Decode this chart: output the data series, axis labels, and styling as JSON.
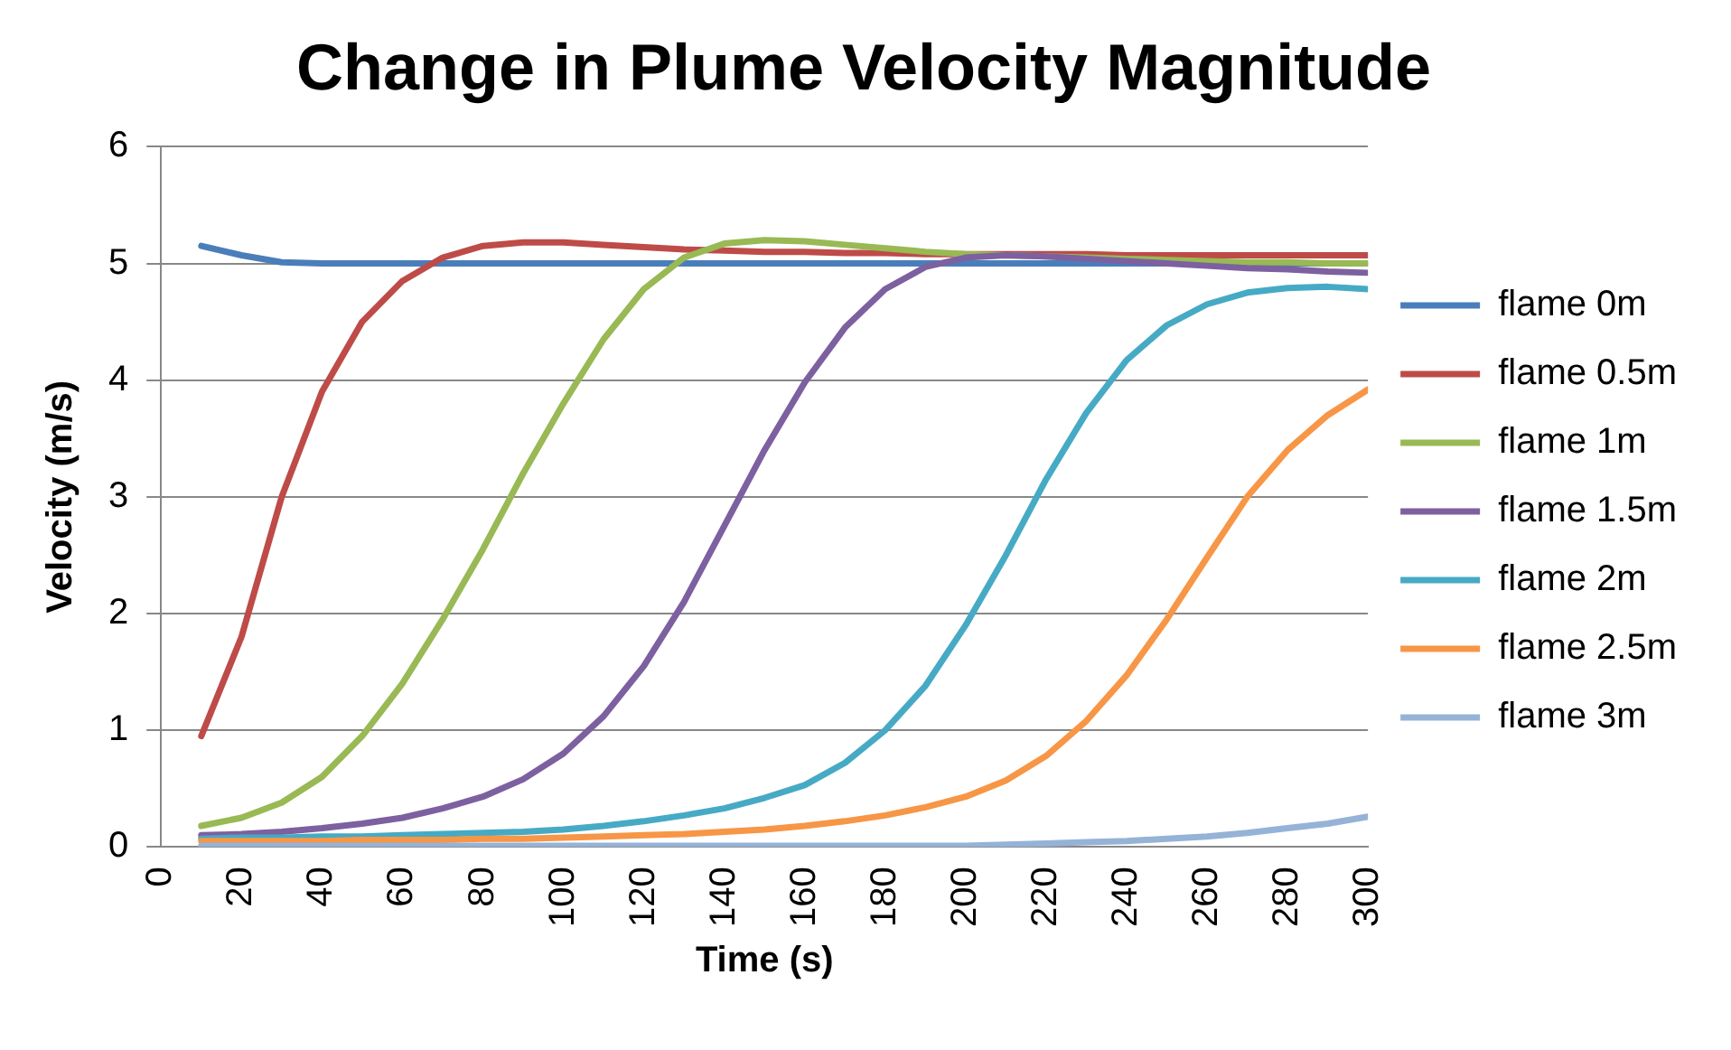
{
  "chart_data": {
    "type": "line",
    "title": "Change in Plume Velocity Magnitude",
    "xlabel": "Time (s)",
    "ylabel": "Velocity (m/s)",
    "x": [
      10,
      20,
      30,
      40,
      50,
      60,
      70,
      80,
      90,
      100,
      110,
      120,
      130,
      140,
      150,
      160,
      170,
      180,
      190,
      200,
      210,
      220,
      230,
      240,
      250,
      260,
      270,
      280,
      290,
      300
    ],
    "xlim": [
      0,
      300
    ],
    "xticks": [
      0,
      20,
      40,
      60,
      80,
      100,
      120,
      140,
      160,
      180,
      200,
      220,
      240,
      260,
      280,
      300
    ],
    "ylim": [
      0,
      6
    ],
    "yticks": [
      0,
      1,
      2,
      3,
      4,
      5,
      6
    ],
    "grid": "y",
    "legend": "right",
    "marker": "none",
    "line_style": "solid",
    "series": [
      {
        "name": "flame 0m",
        "color": "#4a7ebb",
        "values": [
          5.15,
          5.07,
          5.01,
          5.0,
          5.0,
          5.0,
          5.0,
          5.0,
          5.0,
          5.0,
          5.0,
          5.0,
          5.0,
          5.0,
          5.0,
          5.0,
          5.0,
          5.0,
          5.0,
          5.0,
          5.0,
          5.0,
          5.0,
          5.0,
          5.0,
          5.0,
          5.0,
          5.0,
          5.0,
          5.0
        ]
      },
      {
        "name": "flame 0.5m",
        "color": "#be4b48",
        "values": [
          0.95,
          1.8,
          3.0,
          3.9,
          4.5,
          4.85,
          5.05,
          5.15,
          5.18,
          5.18,
          5.16,
          5.14,
          5.12,
          5.11,
          5.1,
          5.1,
          5.09,
          5.09,
          5.08,
          5.08,
          5.08,
          5.08,
          5.08,
          5.07,
          5.07,
          5.07,
          5.07,
          5.07,
          5.07,
          5.07
        ]
      },
      {
        "name": "flame 1m",
        "color": "#98b954",
        "values": [
          0.18,
          0.25,
          0.38,
          0.6,
          0.95,
          1.4,
          1.95,
          2.55,
          3.2,
          3.8,
          4.35,
          4.78,
          5.05,
          5.17,
          5.2,
          5.19,
          5.16,
          5.13,
          5.1,
          5.08,
          5.07,
          5.06,
          5.05,
          5.04,
          5.03,
          5.02,
          5.01,
          5.01,
          5.0,
          5.0
        ]
      },
      {
        "name": "flame 1.5m",
        "color": "#7d60a0",
        "values": [
          0.1,
          0.11,
          0.13,
          0.16,
          0.2,
          0.25,
          0.33,
          0.43,
          0.58,
          0.8,
          1.12,
          1.55,
          2.1,
          2.75,
          3.4,
          3.98,
          4.45,
          4.78,
          4.97,
          5.05,
          5.07,
          5.06,
          5.04,
          5.02,
          5.0,
          4.98,
          4.96,
          4.95,
          4.93,
          4.92
        ]
      },
      {
        "name": "flame 2m",
        "color": "#46aac5",
        "values": [
          0.07,
          0.08,
          0.08,
          0.09,
          0.09,
          0.1,
          0.11,
          0.12,
          0.13,
          0.15,
          0.18,
          0.22,
          0.27,
          0.33,
          0.42,
          0.53,
          0.72,
          1.0,
          1.38,
          1.9,
          2.5,
          3.15,
          3.72,
          4.17,
          4.47,
          4.65,
          4.75,
          4.79,
          4.8,
          4.78
        ]
      },
      {
        "name": "flame 2.5m",
        "color": "#f79646",
        "values": [
          0.05,
          0.05,
          0.05,
          0.05,
          0.06,
          0.06,
          0.06,
          0.07,
          0.07,
          0.08,
          0.09,
          0.1,
          0.11,
          0.13,
          0.15,
          0.18,
          0.22,
          0.27,
          0.34,
          0.43,
          0.57,
          0.78,
          1.08,
          1.47,
          1.95,
          2.48,
          3.0,
          3.4,
          3.7,
          3.92
        ]
      },
      {
        "name": "flame 3m",
        "color": "#95b3d7",
        "values": [
          0.01,
          0.01,
          0.01,
          0.01,
          0.01,
          0.01,
          0.01,
          0.01,
          0.01,
          0.01,
          0.01,
          0.01,
          0.01,
          0.01,
          0.01,
          0.01,
          0.01,
          0.01,
          0.01,
          0.01,
          0.02,
          0.03,
          0.04,
          0.05,
          0.07,
          0.09,
          0.12,
          0.16,
          0.2,
          0.26
        ]
      }
    ]
  }
}
